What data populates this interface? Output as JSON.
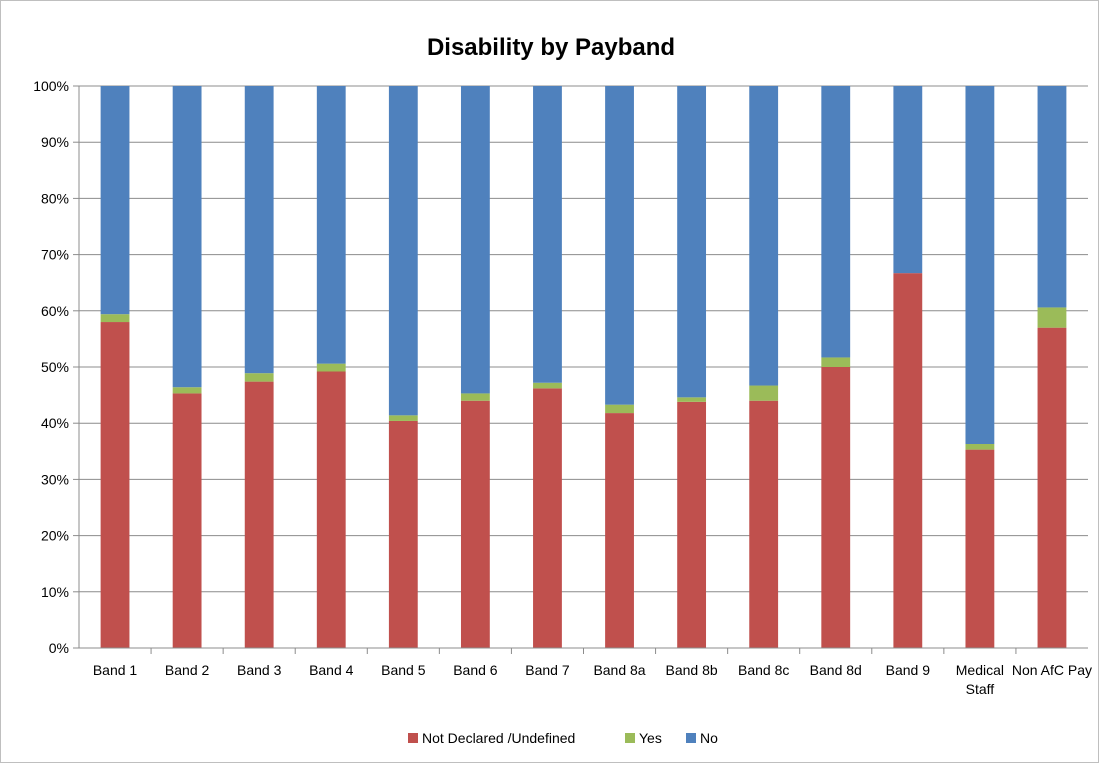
{
  "chart_data": {
    "type": "bar",
    "stacked": "percent",
    "title": "Disability by Payband",
    "categories": [
      "Band 1",
      "Band 2",
      "Band 3",
      "Band 4",
      "Band 5",
      "Band 6",
      "Band 7",
      "Band 8a",
      "Band 8b",
      "Band 8c",
      "Band 8d",
      "Band 9",
      "Medical Staff",
      "Non AfC Pay"
    ],
    "series": [
      {
        "name": "Not Declared /Undefined",
        "color": "#c0504d",
        "values": [
          58.0,
          45.3,
          47.4,
          49.2,
          40.4,
          44.0,
          46.2,
          41.8,
          43.8,
          44.0,
          50.0,
          66.7,
          35.3,
          57.0
        ]
      },
      {
        "name": "Yes",
        "color": "#9bbb59",
        "values": [
          1.4,
          1.1,
          1.5,
          1.4,
          1.0,
          1.3,
          1.0,
          1.5,
          0.8,
          2.7,
          1.7,
          0.0,
          1.0,
          3.6
        ]
      },
      {
        "name": "No",
        "color": "#4f81bd",
        "values": [
          40.6,
          53.6,
          51.1,
          49.4,
          58.6,
          54.7,
          52.8,
          56.7,
          55.4,
          53.3,
          48.3,
          33.3,
          63.7,
          39.4
        ]
      }
    ],
    "y_ticks": [
      "0%",
      "10%",
      "20%",
      "30%",
      "40%",
      "50%",
      "60%",
      "70%",
      "80%",
      "90%",
      "100%"
    ],
    "ylim": [
      0,
      100
    ],
    "xlabel": "",
    "ylabel": "",
    "grid": true,
    "legend_position": "bottom"
  }
}
